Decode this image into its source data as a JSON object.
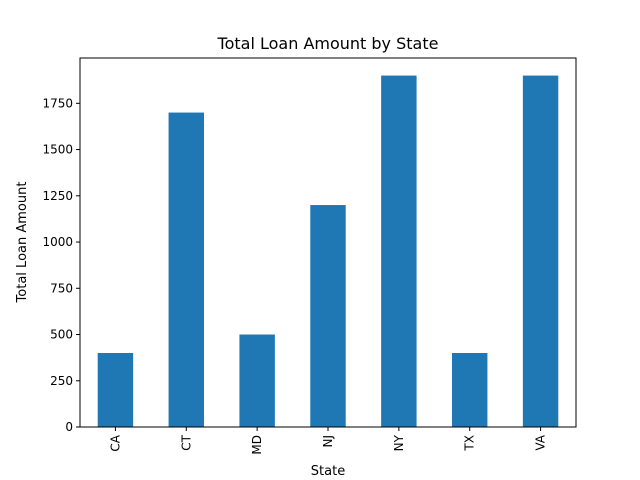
{
  "chart_data": {
    "type": "bar",
    "title": "Total Loan Amount by State",
    "xlabel": "State",
    "ylabel": "Total Loan Amount",
    "categories": [
      "CA",
      "CT",
      "MD",
      "NJ",
      "NY",
      "TX",
      "VA"
    ],
    "values": [
      400,
      1700,
      500,
      1200,
      1900,
      400,
      1900
    ],
    "ylim": [
      0,
      1995
    ],
    "yticks": [
      0,
      250,
      500,
      750,
      1000,
      1250,
      1500,
      1750
    ],
    "bar_color": "#1f77b4",
    "grid": false,
    "legend": "none"
  }
}
